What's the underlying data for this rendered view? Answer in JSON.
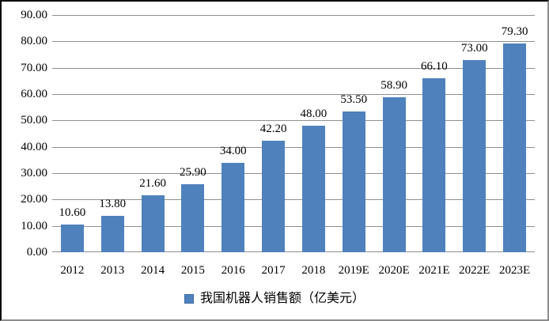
{
  "chart_data": {
    "type": "bar",
    "title": "",
    "categories": [
      "2012",
      "2013",
      "2014",
      "2015",
      "2016",
      "2017",
      "2018",
      "2019E",
      "2020E",
      "2021E",
      "2022E",
      "2023E"
    ],
    "values": [
      10.6,
      13.8,
      21.6,
      25.9,
      34.0,
      42.2,
      48.0,
      53.5,
      58.9,
      66.1,
      73.0,
      79.3
    ],
    "value_labels": [
      "10.60",
      "13.80",
      "21.60",
      "25.90",
      "34.00",
      "42.20",
      "48.00",
      "53.50",
      "58.90",
      "66.10",
      "73.00",
      "79.30"
    ],
    "series": [
      {
        "name": "我国机器人销售额（亿美元）",
        "values": [
          10.6,
          13.8,
          21.6,
          25.9,
          34.0,
          42.2,
          48.0,
          53.5,
          58.9,
          66.1,
          73.0,
          79.3
        ]
      }
    ],
    "xlabel": "",
    "ylabel": "",
    "ylim": [
      0,
      90
    ],
    "ytick_step": 10,
    "ytick_labels": [
      "0.00",
      "10.00",
      "20.00",
      "30.00",
      "40.00",
      "50.00",
      "60.00",
      "70.00",
      "80.00",
      "90.00"
    ],
    "grid": true,
    "legend_position": "bottom",
    "legend_label": "我国机器人销售额（亿美元）",
    "colors": {
      "bar": "#4f81bd",
      "gridline": "#8f8f8f",
      "text": "#000000",
      "background": "#ffffff"
    }
  }
}
